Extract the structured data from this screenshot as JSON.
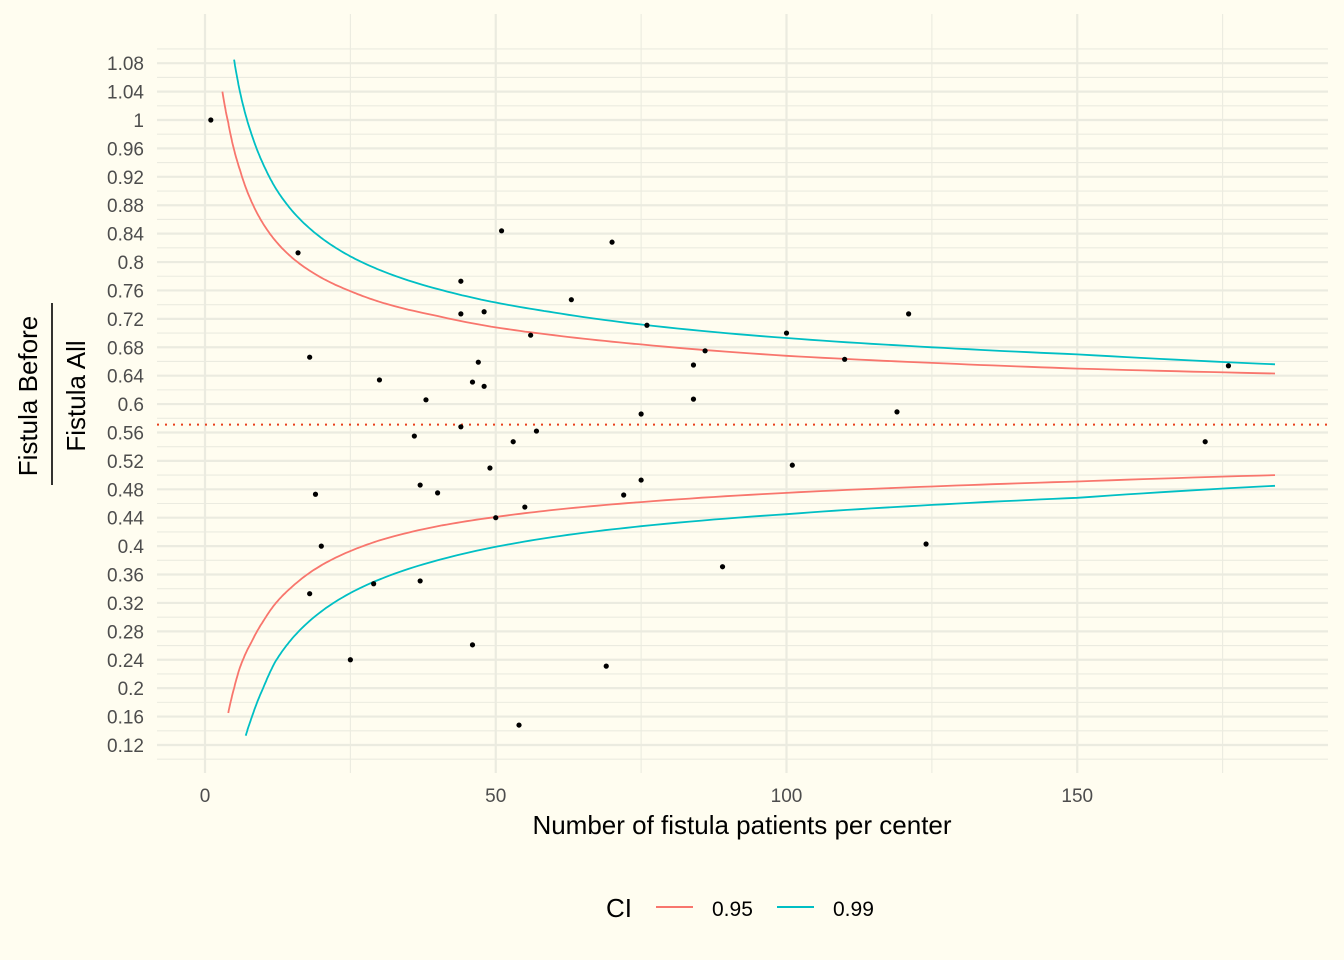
{
  "chart_data": {
    "type": "scatter",
    "title": "",
    "xlabel": "Number of fistula patients per center",
    "ylabel_numerator": "Fistula Before",
    "ylabel_denominator": "Fistula All",
    "xlim": [
      -8,
      193
    ],
    "ylim": [
      0.095,
      1.125
    ],
    "x_ticks": [
      0,
      50,
      100,
      150
    ],
    "x_tick_labels": [
      "0",
      "50",
      "100",
      "150"
    ],
    "y_ticks": [
      0.12,
      0.16,
      0.2,
      0.24,
      0.28,
      0.32,
      0.36,
      0.4,
      0.44,
      0.48,
      0.52,
      0.56,
      0.6,
      0.64,
      0.68,
      0.72,
      0.76,
      0.8,
      0.84,
      0.88,
      0.92,
      0.96,
      1,
      1.04,
      1.08
    ],
    "y_tick_labels": [
      "0.12",
      "0.16",
      "0.2",
      "0.24",
      "0.28",
      "0.32",
      "0.36",
      "0.4",
      "0.44",
      "0.48",
      "0.52",
      "0.56",
      "0.6",
      "0.64",
      "0.68",
      "0.72",
      "0.76",
      "0.8",
      "0.84",
      "0.88",
      "0.92",
      "0.96",
      "1",
      "1.04",
      "1.08"
    ],
    "grid": true,
    "reference_line": {
      "y": 0.571,
      "style": "dotted",
      "color": "#e8401c"
    },
    "points": [
      {
        "x": 1,
        "y": 1.0
      },
      {
        "x": 16,
        "y": 0.813
      },
      {
        "x": 18,
        "y": 0.666
      },
      {
        "x": 19,
        "y": 0.473
      },
      {
        "x": 20,
        "y": 0.4
      },
      {
        "x": 18,
        "y": 0.333
      },
      {
        "x": 25,
        "y": 0.24
      },
      {
        "x": 29,
        "y": 0.347
      },
      {
        "x": 30,
        "y": 0.634
      },
      {
        "x": 36,
        "y": 0.555
      },
      {
        "x": 37,
        "y": 0.486
      },
      {
        "x": 37,
        "y": 0.351
      },
      {
        "x": 38,
        "y": 0.606
      },
      {
        "x": 40,
        "y": 0.475
      },
      {
        "x": 44,
        "y": 0.773
      },
      {
        "x": 44,
        "y": 0.727
      },
      {
        "x": 44,
        "y": 0.568
      },
      {
        "x": 46,
        "y": 0.631
      },
      {
        "x": 46,
        "y": 0.261
      },
      {
        "x": 47,
        "y": 0.659
      },
      {
        "x": 48,
        "y": 0.73
      },
      {
        "x": 48,
        "y": 0.625
      },
      {
        "x": 49,
        "y": 0.51
      },
      {
        "x": 50,
        "y": 0.44
      },
      {
        "x": 51,
        "y": 0.844
      },
      {
        "x": 53,
        "y": 0.547
      },
      {
        "x": 54,
        "y": 0.148
      },
      {
        "x": 55,
        "y": 0.455
      },
      {
        "x": 56,
        "y": 0.697
      },
      {
        "x": 57,
        "y": 0.562
      },
      {
        "x": 63,
        "y": 0.747
      },
      {
        "x": 69,
        "y": 0.231
      },
      {
        "x": 70,
        "y": 0.828
      },
      {
        "x": 72,
        "y": 0.472
      },
      {
        "x": 75,
        "y": 0.586
      },
      {
        "x": 75,
        "y": 0.493
      },
      {
        "x": 76,
        "y": 0.711
      },
      {
        "x": 84,
        "y": 0.655
      },
      {
        "x": 84,
        "y": 0.607
      },
      {
        "x": 86,
        "y": 0.675
      },
      {
        "x": 89,
        "y": 0.371
      },
      {
        "x": 100,
        "y": 0.7
      },
      {
        "x": 101,
        "y": 0.514
      },
      {
        "x": 110,
        "y": 0.663
      },
      {
        "x": 119,
        "y": 0.589
      },
      {
        "x": 121,
        "y": 0.727
      },
      {
        "x": 124,
        "y": 0.403
      },
      {
        "x": 172,
        "y": 0.547
      },
      {
        "x": 176,
        "y": 0.654
      }
    ],
    "series": [
      {
        "name": "0.95",
        "color": "#f8766d",
        "upper": [
          [
            3,
            1.04
          ],
          [
            4,
            0.996
          ],
          [
            5,
            0.958
          ],
          [
            6,
            0.93
          ],
          [
            8,
            0.885
          ],
          [
            10,
            0.854
          ],
          [
            12,
            0.831
          ],
          [
            15,
            0.806
          ],
          [
            20,
            0.778
          ],
          [
            25,
            0.759
          ],
          [
            30,
            0.744
          ],
          [
            40,
            0.724
          ],
          [
            50,
            0.708
          ],
          [
            60,
            0.697
          ],
          [
            75,
            0.684
          ],
          [
            100,
            0.668
          ],
          [
            125,
            0.658
          ],
          [
            150,
            0.65
          ],
          [
            184,
            0.643
          ]
        ],
        "lower": [
          [
            4,
            0.165
          ],
          [
            5,
            0.2
          ],
          [
            6,
            0.229
          ],
          [
            8,
            0.265
          ],
          [
            10,
            0.294
          ],
          [
            12,
            0.318
          ],
          [
            15,
            0.343
          ],
          [
            20,
            0.373
          ],
          [
            25,
            0.393
          ],
          [
            30,
            0.408
          ],
          [
            40,
            0.428
          ],
          [
            50,
            0.441
          ],
          [
            60,
            0.451
          ],
          [
            75,
            0.462
          ],
          [
            100,
            0.475
          ],
          [
            125,
            0.484
          ],
          [
            150,
            0.491
          ],
          [
            184,
            0.5
          ]
        ]
      },
      {
        "name": "0.99",
        "color": "#00bfc4",
        "upper": [
          [
            5,
            1.085
          ],
          [
            6,
            1.04
          ],
          [
            8,
            0.98
          ],
          [
            10,
            0.938
          ],
          [
            12,
            0.906
          ],
          [
            15,
            0.872
          ],
          [
            20,
            0.834
          ],
          [
            25,
            0.808
          ],
          [
            30,
            0.789
          ],
          [
            40,
            0.762
          ],
          [
            50,
            0.743
          ],
          [
            60,
            0.729
          ],
          [
            75,
            0.712
          ],
          [
            100,
            0.693
          ],
          [
            125,
            0.68
          ],
          [
            150,
            0.67
          ],
          [
            184,
            0.656
          ]
        ],
        "lower": [
          [
            7,
            0.133
          ],
          [
            8,
            0.158
          ],
          [
            10,
            0.2
          ],
          [
            12,
            0.236
          ],
          [
            15,
            0.27
          ],
          [
            20,
            0.308
          ],
          [
            25,
            0.334
          ],
          [
            30,
            0.353
          ],
          [
            40,
            0.38
          ],
          [
            50,
            0.399
          ],
          [
            60,
            0.413
          ],
          [
            75,
            0.428
          ],
          [
            100,
            0.445
          ],
          [
            125,
            0.458
          ],
          [
            150,
            0.468
          ],
          [
            184,
            0.485
          ]
        ]
      }
    ],
    "legend": {
      "title": "CI",
      "position": "bottom",
      "entries": [
        "0.95",
        "0.99"
      ]
    }
  }
}
